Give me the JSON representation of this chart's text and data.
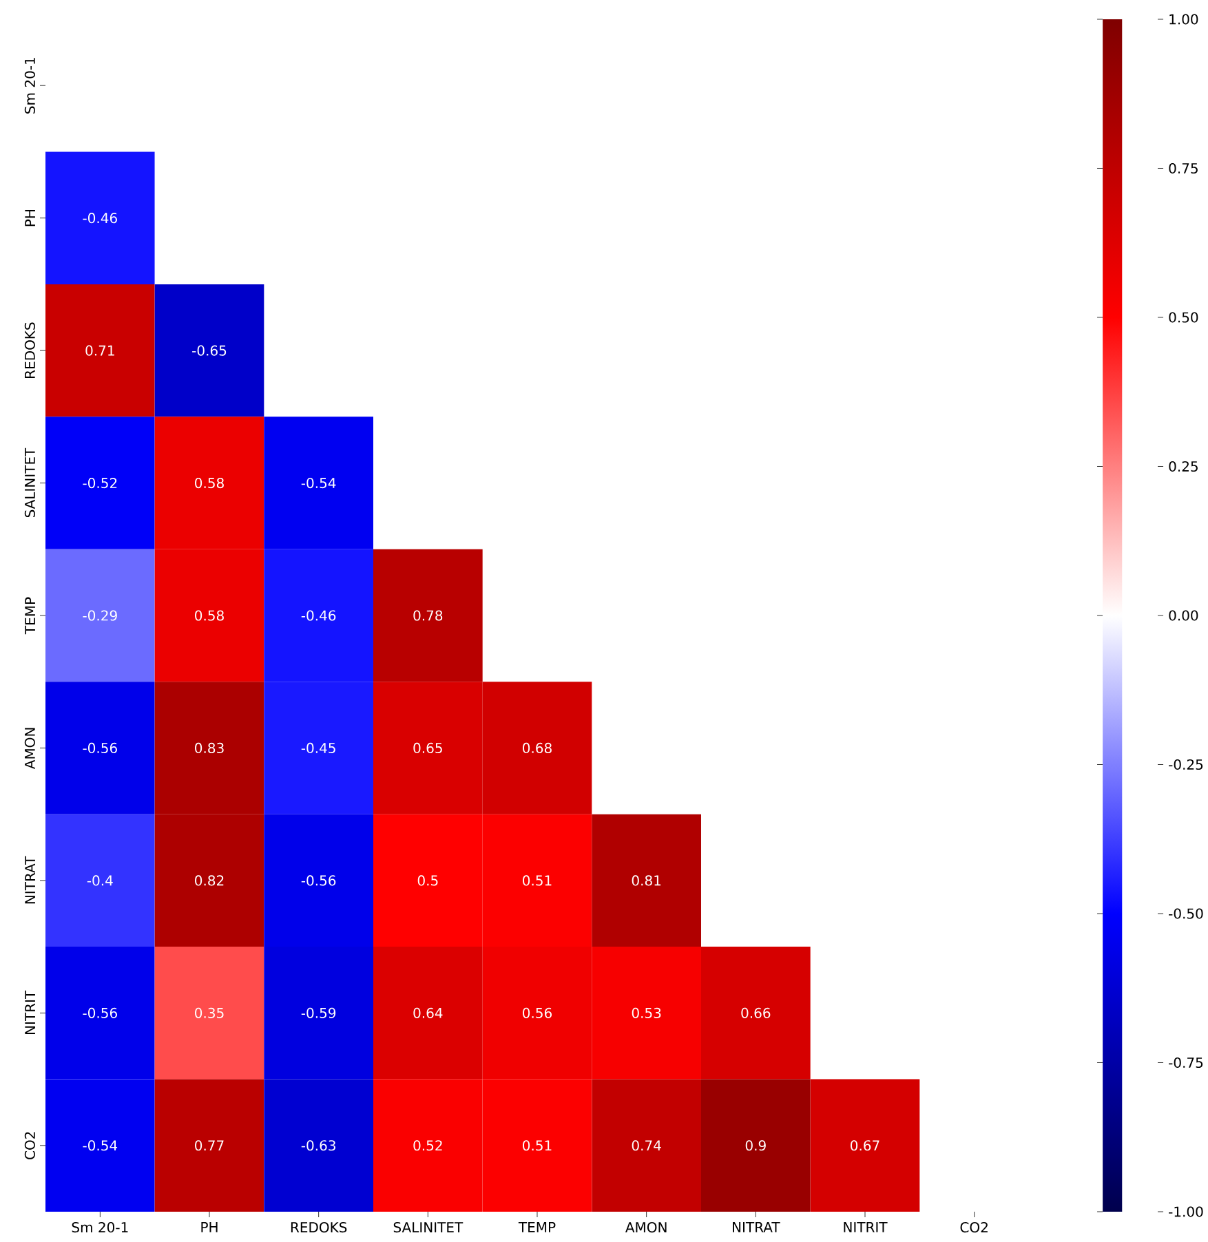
{
  "chart_data": {
    "type": "heatmap",
    "categories": [
      "Sm 20-1",
      "PH",
      "REDOKS",
      "SALINITET",
      "TEMP",
      "AMON",
      "NITRAT",
      "NITRIT",
      "CO2"
    ],
    "y_categories": [
      "Sm 20-1",
      "PH",
      "REDOKS",
      "SALINITET",
      "TEMP",
      "AMON",
      "NITRAT",
      "NITRIT",
      "CO2"
    ],
    "cells": [
      [
        null,
        null,
        null,
        null,
        null,
        null,
        null,
        null,
        null
      ],
      [
        -0.46,
        null,
        null,
        null,
        null,
        null,
        null,
        null,
        null
      ],
      [
        0.71,
        -0.65,
        null,
        null,
        null,
        null,
        null,
        null,
        null
      ],
      [
        -0.52,
        0.58,
        -0.54,
        null,
        null,
        null,
        null,
        null,
        null
      ],
      [
        -0.29,
        0.58,
        -0.46,
        0.78,
        null,
        null,
        null,
        null,
        null
      ],
      [
        -0.56,
        0.83,
        -0.45,
        0.65,
        0.68,
        null,
        null,
        null,
        null
      ],
      [
        -0.4,
        0.82,
        -0.56,
        0.5,
        0.51,
        0.81,
        null,
        null,
        null
      ],
      [
        -0.56,
        0.35,
        -0.59,
        0.64,
        0.56,
        0.53,
        0.66,
        null,
        null
      ],
      [
        -0.54,
        0.77,
        -0.63,
        0.52,
        0.51,
        0.74,
        0.9,
        0.67,
        null
      ]
    ],
    "data_labels": true,
    "clim": [
      -1,
      1
    ],
    "cticks": [
      {
        "value": -1,
        "label": "-1.00"
      },
      {
        "value": -0.75,
        "label": "-0.75"
      },
      {
        "value": -0.5,
        "label": "-0.50"
      },
      {
        "value": -0.25,
        "label": "-0.25"
      },
      {
        "value": 0,
        "label": "0.00"
      },
      {
        "value": 0.25,
        "label": "0.25"
      },
      {
        "value": 0.5,
        "label": "0.50"
      },
      {
        "value": 0.75,
        "label": "0.75"
      },
      {
        "value": 1,
        "label": "1.00"
      }
    ]
  }
}
